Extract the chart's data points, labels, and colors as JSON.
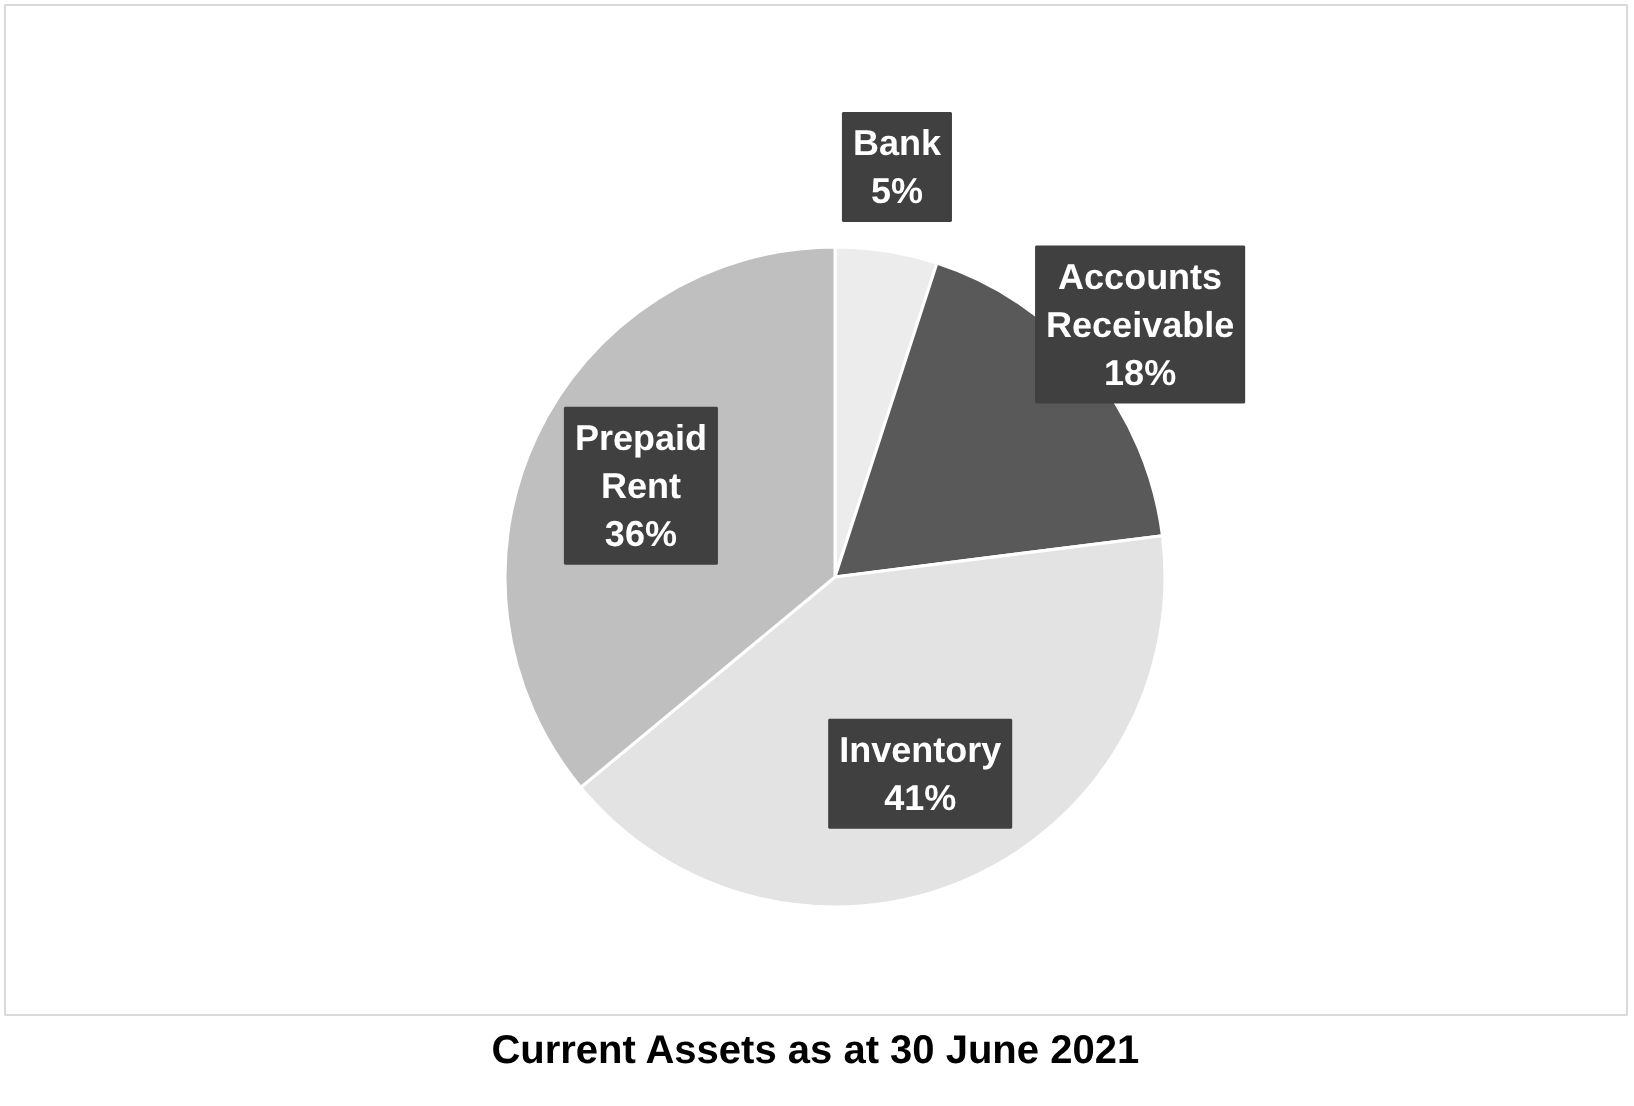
{
  "chart_data": {
    "type": "pie",
    "title": "Current Assets as at 30 June 2021",
    "categories": [
      "Bank",
      "Accounts Receivable",
      "Inventory",
      "Prepaid Rent"
    ],
    "values": [
      5,
      18,
      41,
      36
    ],
    "colors": [
      "#ececec",
      "#595959",
      "#e3e3e3",
      "#bfbfbf"
    ],
    "value_labels": [
      "5%",
      "18%",
      "41%",
      "36%"
    ]
  }
}
